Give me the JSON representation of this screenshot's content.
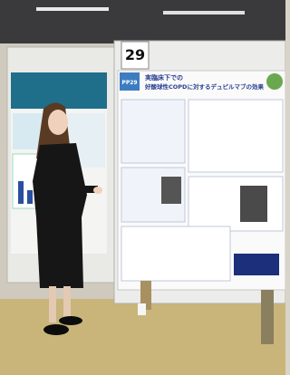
{
  "board_number": "29",
  "poster": {
    "id": "PP29",
    "title_line1": "実臨床下での",
    "title_line2": "好酸球性COPDに対するデュピルマブの効果"
  }
}
